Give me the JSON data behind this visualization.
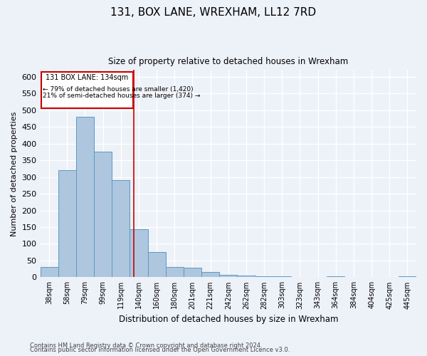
{
  "title": "131, BOX LANE, WREXHAM, LL12 7RD",
  "subtitle": "Size of property relative to detached houses in Wrexham",
  "xlabel": "Distribution of detached houses by size in Wrexham",
  "ylabel": "Number of detached properties",
  "footnote1": "Contains HM Land Registry data © Crown copyright and database right 2024.",
  "footnote2": "Contains public sector information licensed under the Open Government Licence v3.0.",
  "categories": [
    "38sqm",
    "58sqm",
    "79sqm",
    "99sqm",
    "119sqm",
    "140sqm",
    "160sqm",
    "180sqm",
    "201sqm",
    "221sqm",
    "242sqm",
    "262sqm",
    "282sqm",
    "303sqm",
    "323sqm",
    "343sqm",
    "364sqm",
    "384sqm",
    "404sqm",
    "425sqm",
    "445sqm"
  ],
  "values": [
    30,
    320,
    480,
    375,
    290,
    143,
    75,
    30,
    28,
    15,
    8,
    5,
    3,
    3,
    1,
    1,
    3,
    1,
    0,
    0,
    4
  ],
  "bar_color": "#aec6de",
  "bar_edge_color": "#5a9bc4",
  "highlight_label": "131 BOX LANE: 134sqm",
  "annotation_line1": "← 79% of detached houses are smaller (1,420)",
  "annotation_line2": "21% of semi-detached houses are larger (374) →",
  "annotation_box_color": "#ffffff",
  "annotation_box_edge": "#cc0000",
  "vline_color": "#cc0000",
  "ylim": [
    0,
    620
  ],
  "yticks": [
    0,
    50,
    100,
    150,
    200,
    250,
    300,
    350,
    400,
    450,
    500,
    550,
    600
  ],
  "background_color": "#edf1f8",
  "grid_color": "#ffffff",
  "vline_x_index": 4.72
}
